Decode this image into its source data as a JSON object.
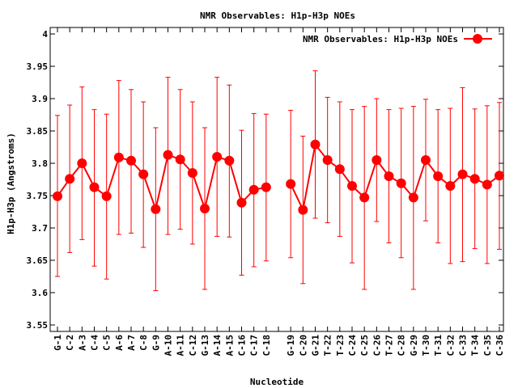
{
  "chart_data": {
    "type": "line",
    "title": "NMR Observables: H1p-H3p NOEs",
    "xlabel": "Nucleotide",
    "ylabel": "H1p-H3p (Angstroms)",
    "ylim": [
      3.54,
      4.01
    ],
    "yticks": [
      "3.55",
      "3.6",
      "3.65",
      "3.7",
      "3.75",
      "3.8",
      "3.85",
      "3.9",
      "3.95",
      "4"
    ],
    "legend": {
      "label": "NMR Observables: H1p-H3p NOEs",
      "placement": "top-right"
    },
    "grid": false,
    "color": "#ff0000",
    "categories": [
      "G-1",
      "C-2",
      "A-3",
      "C-4",
      "C-5",
      "A-6",
      "A-7",
      "C-8",
      "G-9",
      "A-10",
      "A-11",
      "C-12",
      "G-13",
      "A-14",
      "A-15",
      "C-16",
      "C-17",
      "C-18",
      "",
      "G-19",
      "C-20",
      "G-21",
      "T-22",
      "T-23",
      "C-24",
      "C-25",
      "C-26",
      "T-27",
      "C-28",
      "G-29",
      "T-30",
      "T-31",
      "C-32",
      "C-33",
      "T-34",
      "C-35",
      "C-36"
    ],
    "series": [
      {
        "name": "NMR Observables: H1p-H3p NOEs",
        "values": [
          3.749,
          3.776,
          3.8,
          3.763,
          3.749,
          3.809,
          3.804,
          3.783,
          3.729,
          3.813,
          3.806,
          3.785,
          3.73,
          3.81,
          3.804,
          3.739,
          3.759,
          3.763,
          null,
          3.768,
          3.728,
          3.829,
          3.805,
          3.791,
          3.765,
          3.747,
          3.805,
          3.78,
          3.769,
          3.747,
          3.805,
          3.78,
          3.765,
          3.783,
          3.776,
          3.767,
          3.781
        ],
        "lower": [
          3.625,
          3.662,
          3.682,
          3.641,
          3.621,
          3.69,
          3.692,
          3.67,
          3.603,
          3.69,
          3.698,
          3.675,
          3.605,
          3.687,
          3.686,
          3.627,
          3.64,
          3.649,
          null,
          3.654,
          3.614,
          3.715,
          3.708,
          3.687,
          3.646,
          3.605,
          3.71,
          3.677,
          3.654,
          3.605,
          3.711,
          3.677,
          3.645,
          3.648,
          3.668,
          3.645,
          3.667
        ],
        "upper": [
          3.874,
          3.89,
          3.918,
          3.883,
          3.876,
          3.928,
          3.914,
          3.895,
          3.855,
          3.933,
          3.914,
          3.895,
          3.855,
          3.933,
          3.921,
          3.851,
          3.877,
          3.876,
          null,
          3.882,
          3.842,
          3.943,
          3.902,
          3.895,
          3.883,
          3.888,
          3.9,
          3.883,
          3.885,
          3.888,
          3.899,
          3.883,
          3.885,
          3.917,
          3.884,
          3.889,
          3.894
        ]
      }
    ]
  }
}
